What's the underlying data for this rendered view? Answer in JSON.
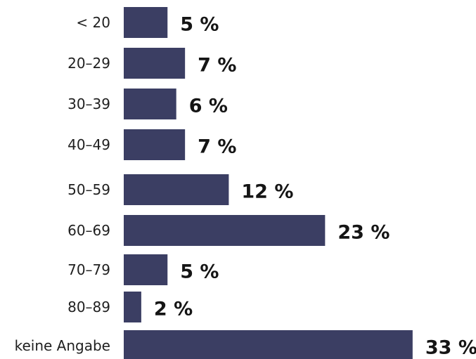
{
  "chart_data": {
    "type": "bar",
    "orientation": "horizontal",
    "categories": [
      "< 20",
      "20–29",
      "30–39",
      "40–49",
      "50–59",
      "60–69",
      "70–79",
      "80–89",
      "keine Angabe"
    ],
    "values": [
      5,
      7,
      6,
      7,
      12,
      23,
      5,
      2,
      33
    ],
    "value_labels": [
      "5 %",
      "7 %",
      "6 %",
      "7 %",
      "12 %",
      "23 %",
      "5 %",
      "2 %",
      "33 %"
    ],
    "unit": "%",
    "bar_color": "#3b3e63",
    "grid": false,
    "legend": "none",
    "title": "",
    "xlabel": "",
    "ylabel": ""
  }
}
